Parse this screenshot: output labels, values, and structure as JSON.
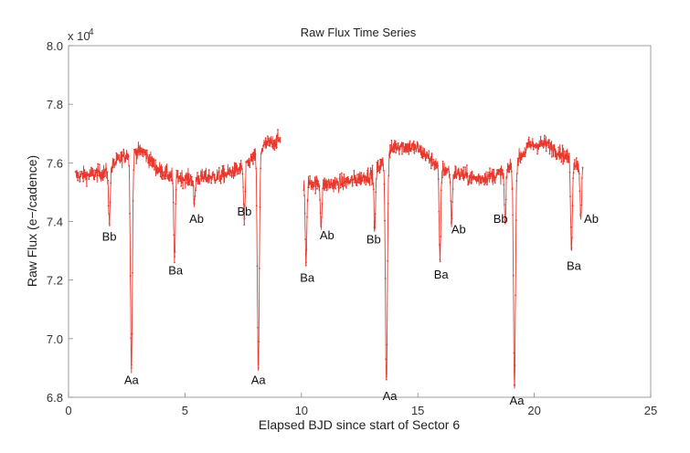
{
  "chart_data": {
    "type": "line",
    "title": "Raw Flux Time Series",
    "xlabel": "Elapsed BJD since start of Sector 6",
    "ylabel": "Raw Flux (e−/cadence)",
    "y_multiplier_label": "x 10",
    "y_multiplier_exponent": "4",
    "xlim": [
      0,
      25
    ],
    "ylim": [
      6.8,
      8.0
    ],
    "x_ticks": [
      0,
      5,
      10,
      15,
      20,
      25
    ],
    "y_ticks": [
      6.8,
      7.0,
      7.2,
      7.4,
      7.6,
      7.8,
      8.0
    ],
    "x_tick_labels": [
      "0",
      "5",
      "10",
      "15",
      "20",
      "25"
    ],
    "y_tick_labels": [
      "6.8",
      "7.0",
      "7.2",
      "7.4",
      "7.6",
      "7.8",
      "8.0"
    ],
    "grid": false,
    "color": "#e8392f",
    "series": [
      {
        "segments": [
          {
            "x_start": 0.3,
            "x_end": 9.1
          },
          {
            "x_start": 10.1,
            "x_end": 22.1
          }
        ],
        "baseline": [
          [
            0.3,
            7.555
          ],
          [
            1.0,
            7.56
          ],
          [
            1.7,
            7.57
          ],
          [
            2.0,
            7.6
          ],
          [
            2.5,
            7.63
          ],
          [
            3.2,
            7.64
          ],
          [
            3.8,
            7.58
          ],
          [
            4.4,
            7.555
          ],
          [
            5.2,
            7.545
          ],
          [
            6.5,
            7.555
          ],
          [
            7.4,
            7.58
          ],
          [
            8.0,
            7.62
          ],
          [
            8.4,
            7.66
          ],
          [
            9.1,
            7.68
          ],
          [
            10.1,
            7.535
          ],
          [
            11.0,
            7.525
          ],
          [
            12.0,
            7.535
          ],
          [
            13.0,
            7.56
          ],
          [
            13.5,
            7.6
          ],
          [
            14.0,
            7.66
          ],
          [
            15.0,
            7.65
          ],
          [
            16.0,
            7.58
          ],
          [
            17.5,
            7.545
          ],
          [
            18.5,
            7.56
          ],
          [
            19.2,
            7.6
          ],
          [
            19.8,
            7.66
          ],
          [
            20.5,
            7.665
          ],
          [
            21.2,
            7.63
          ],
          [
            22.1,
            7.58
          ]
        ],
        "noise_amplitude": 0.05,
        "eclipses": [
          {
            "label": "Bb",
            "x": 1.75,
            "min": 7.4
          },
          {
            "label": "Aa",
            "x": 2.7,
            "min": 6.9
          },
          {
            "label": "Ba",
            "x": 4.55,
            "min": 7.27
          },
          {
            "label": "Ab",
            "x": 5.4,
            "min": 7.46
          },
          {
            "label": "Bb",
            "x": 7.55,
            "min": 7.4
          },
          {
            "label": "Aa",
            "x": 8.15,
            "min": 6.89
          },
          {
            "label": "Ba",
            "x": 10.2,
            "min": 7.25
          },
          {
            "label": "Ab",
            "x": 10.85,
            "min": 7.39
          },
          {
            "label": "Bb",
            "x": 13.15,
            "min": 7.37
          },
          {
            "label": "Aa",
            "x": 13.65,
            "min": 6.86
          },
          {
            "label": "Ba",
            "x": 15.95,
            "min": 7.27
          },
          {
            "label": "Ab",
            "x": 16.45,
            "min": 7.4
          },
          {
            "label": "Bb",
            "x": 18.75,
            "min": 7.39
          },
          {
            "label": "Aa",
            "x": 19.15,
            "min": 6.83
          },
          {
            "label": "Ba",
            "x": 21.6,
            "min": 7.3
          },
          {
            "label": "Ab",
            "x": 22.0,
            "min": 7.42
          }
        ]
      }
    ],
    "annotations": [
      {
        "text": "Bb",
        "x": 1.75,
        "y": 7.335
      },
      {
        "text": "Aa",
        "x": 2.7,
        "y": 6.845
      },
      {
        "text": "Ba",
        "x": 4.6,
        "y": 7.22
      },
      {
        "text": "Ab",
        "x": 5.5,
        "y": 7.395
      },
      {
        "text": "Bb",
        "x": 7.55,
        "y": 7.42
      },
      {
        "text": "Aa",
        "x": 8.15,
        "y": 6.845
      },
      {
        "text": "Ba",
        "x": 10.25,
        "y": 7.195
      },
      {
        "text": "Ab",
        "x": 11.1,
        "y": 7.34
      },
      {
        "text": "Bb",
        "x": 13.1,
        "y": 7.325
      },
      {
        "text": "Aa",
        "x": 13.8,
        "y": 6.79
      },
      {
        "text": "Ba",
        "x": 16.0,
        "y": 7.205
      },
      {
        "text": "Ab",
        "x": 16.75,
        "y": 7.36
      },
      {
        "text": "Bb",
        "x": 18.55,
        "y": 7.395
      },
      {
        "text": "Aa",
        "x": 19.25,
        "y": 6.775
      },
      {
        "text": "Ba",
        "x": 21.7,
        "y": 7.235
      },
      {
        "text": "Ab",
        "x": 22.45,
        "y": 7.395
      }
    ]
  }
}
